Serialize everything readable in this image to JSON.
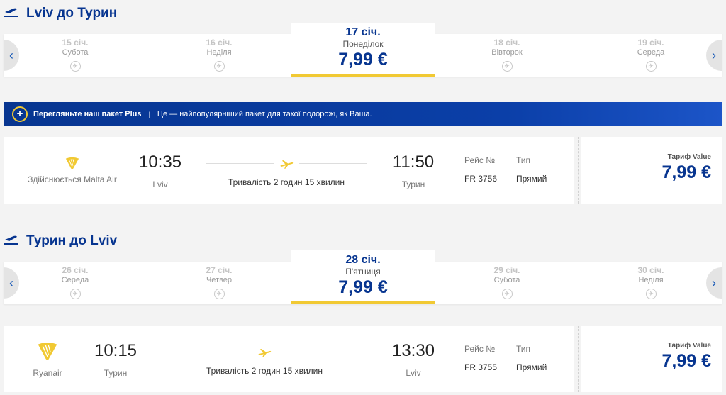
{
  "colors": {
    "brand": "#073590",
    "accent": "#f1c933",
    "background": "#f3f3f3"
  },
  "outbound": {
    "title": "Lviv до Турин",
    "icon": "plane-departure-icon",
    "dates": [
      {
        "date": "15 січ.",
        "weekday": "Субота"
      },
      {
        "date": "16 січ.",
        "weekday": "Неділя"
      },
      {
        "date": "17 січ.",
        "weekday": "Понеділок",
        "price": "7,99 €"
      },
      {
        "date": "18 січ.",
        "weekday": "Вівторок"
      },
      {
        "date": "19 січ.",
        "weekday": "Середа"
      }
    ],
    "flight": {
      "airline": "Здійснюється Malta Air",
      "dep_time": "10:35",
      "dep_city": "Lviv",
      "duration": "Тривалість 2 годин 15 хвилин",
      "arr_time": "11:50",
      "arr_city": "Турин",
      "flight_no_label": "Рейс №",
      "flight_no": "FR 3756",
      "type_label": "Тип",
      "type": "Прямий",
      "fare_label": "Тариф Value",
      "fare_price": "7,99 €"
    }
  },
  "banner": {
    "title": "Перегляньте наш пакет Plus",
    "separator": "|",
    "text": "Це — найпопулярніший пакет для такої подорожі, як Ваша."
  },
  "inbound": {
    "title": "Турин до Lviv",
    "icon": "plane-arrival-icon",
    "dates": [
      {
        "date": "26 січ.",
        "weekday": "Середа"
      },
      {
        "date": "27 січ.",
        "weekday": "Четвер"
      },
      {
        "date": "28 січ.",
        "weekday": "П'ятниця",
        "price": "7,99 €"
      },
      {
        "date": "29 січ.",
        "weekday": "Субота"
      },
      {
        "date": "30 січ.",
        "weekday": "Неділя"
      }
    ],
    "flight": {
      "airline": "Ryanair",
      "dep_time": "10:15",
      "dep_city": "Турин",
      "duration": "Тривалість 2 годин 15 хвилин",
      "arr_time": "13:30",
      "arr_city": "Lviv",
      "flight_no_label": "Рейс №",
      "flight_no": "FR 3755",
      "type_label": "Тип",
      "type": "Прямий",
      "fare_label": "Тариф Value",
      "fare_price": "7,99 €"
    }
  }
}
